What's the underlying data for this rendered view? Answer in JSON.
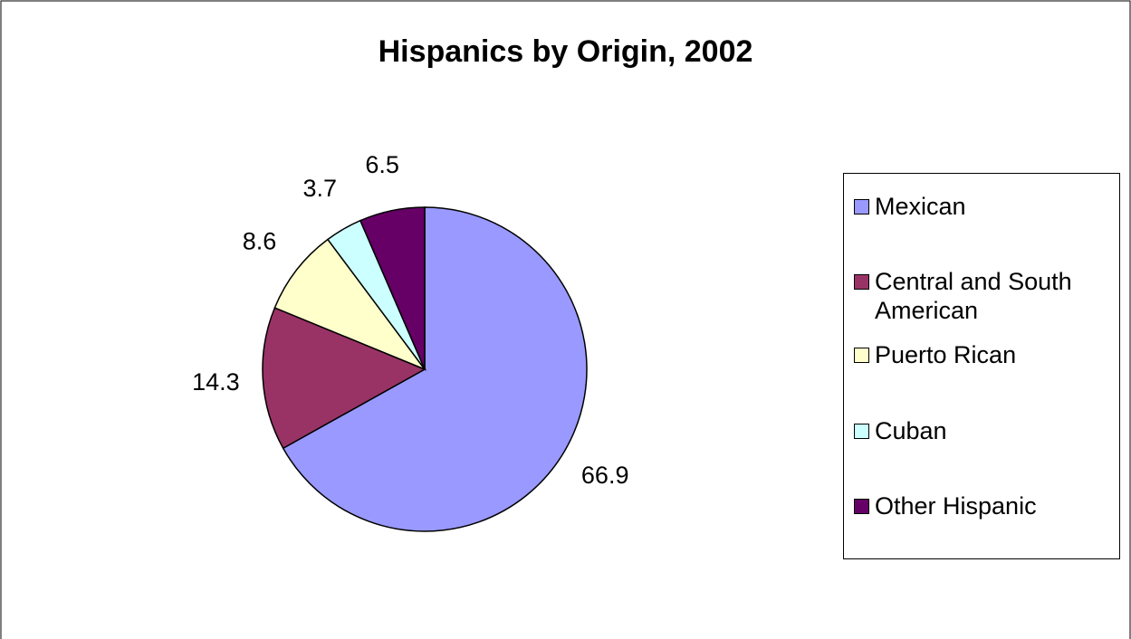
{
  "chart_data": {
    "type": "pie",
    "title": "Hispanics by Origin, 2002",
    "legend_position": "right",
    "slices": [
      {
        "label": "Mexican",
        "value": 66.9,
        "value_label": "66.9",
        "color": "#9999FF"
      },
      {
        "label": "Central and South American",
        "value": 14.3,
        "value_label": "14.3",
        "color": "#993366"
      },
      {
        "label": "Puerto Rican",
        "value": 8.6,
        "value_label": "8.6",
        "color": "#FFFFCC"
      },
      {
        "label": "Cuban",
        "value": 3.7,
        "value_label": "3.7",
        "color": "#CCFFFF"
      },
      {
        "label": "Other Hispanic",
        "value": 6.5,
        "value_label": "6.5",
        "color": "#660066"
      }
    ]
  }
}
